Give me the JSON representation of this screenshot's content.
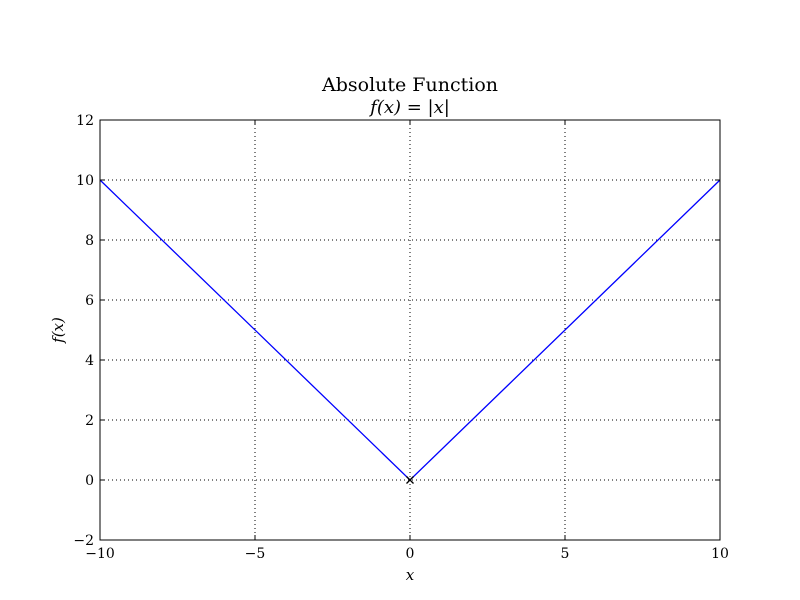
{
  "chart_data": {
    "type": "line",
    "title": "Absolute Function",
    "subtitle": "f(x) = |x|",
    "xlabel": "x",
    "ylabel": "f(x)",
    "xlim": [
      -10,
      10
    ],
    "ylim": [
      -2,
      12
    ],
    "xticks": [
      -10,
      -5,
      0,
      5,
      10
    ],
    "xtick_labels": [
      "−10",
      "−5",
      "0",
      "5",
      "10"
    ],
    "yticks": [
      -2,
      0,
      2,
      4,
      6,
      8,
      10,
      12
    ],
    "ytick_labels": [
      "−2",
      "0",
      "2",
      "4",
      "6",
      "8",
      "10",
      "12"
    ],
    "grid": true,
    "series": [
      {
        "color": "#0000ff",
        "x": [
          -10,
          0,
          10
        ],
        "y": [
          10,
          0,
          10
        ]
      }
    ],
    "marker_points": [
      {
        "x": 0,
        "y": 0,
        "marker": "x",
        "color": "#000000"
      }
    ]
  }
}
